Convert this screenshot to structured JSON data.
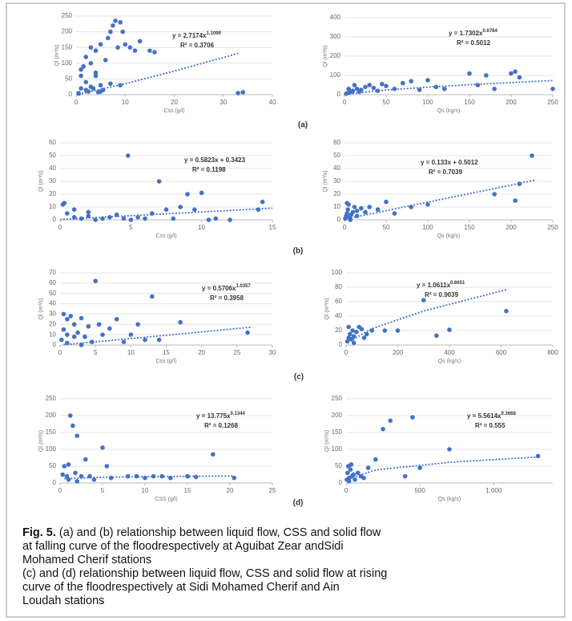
{
  "chart_data": [
    {
      "type": "scatter",
      "x_label": "Css (g/l)",
      "y_label": "Ql (m³/s)",
      "equation": "y = 2.7174x",
      "exponent": "1.1099",
      "r_squared": "R² = 0.3706",
      "color": "#4472c4",
      "grid": true,
      "xlim": [
        0,
        40
      ],
      "xticks": [
        0,
        10,
        20,
        30,
        40
      ],
      "ylim": [
        0,
        250
      ],
      "yticks": [
        0,
        50,
        100,
        150,
        200,
        250
      ],
      "x": [
        0.5,
        1,
        1,
        1.5,
        2,
        2,
        2.5,
        3,
        3,
        3.5,
        4,
        4,
        4.5,
        5,
        5,
        5.5,
        6,
        6.5,
        7,
        7.5,
        8,
        8.5,
        9,
        9.5,
        10,
        11,
        12,
        13,
        15,
        16,
        33,
        34,
        2,
        3,
        5,
        7,
        9,
        1,
        0.5,
        4
      ],
      "values": [
        5,
        20,
        60,
        90,
        40,
        120,
        10,
        100,
        150,
        20,
        140,
        60,
        8,
        30,
        160,
        15,
        110,
        180,
        200,
        220,
        235,
        150,
        230,
        200,
        160,
        150,
        140,
        170,
        140,
        135,
        5,
        8,
        15,
        25,
        10,
        35,
        30,
        80,
        3,
        70
      ],
      "trendline": {
        "x": [
          0.5,
          10,
          20,
          33
        ],
        "values": [
          1.3,
          35,
          75,
          131
        ]
      }
    },
    {
      "type": "scatter",
      "x_label": "Qs (kg/s)",
      "y_label": "Ql (m³/s)",
      "equation": "y = 1.7302x",
      "exponent": "0.6784",
      "r_squared": "R² = 0.5012",
      "color": "#4472c4",
      "grid": true,
      "xlim": [
        0,
        250
      ],
      "xticks": [
        0,
        50,
        100,
        150,
        200,
        250
      ],
      "ylim": [
        0,
        400
      ],
      "yticks": [
        0,
        100,
        200,
        300,
        400
      ],
      "x": [
        2,
        5,
        8,
        10,
        15,
        20,
        25,
        30,
        35,
        40,
        50,
        60,
        70,
        80,
        90,
        100,
        110,
        120,
        150,
        160,
        170,
        180,
        200,
        205,
        210,
        250,
        5,
        12,
        18,
        45
      ],
      "values": [
        5,
        10,
        15,
        20,
        30,
        25,
        40,
        50,
        35,
        20,
        45,
        30,
        60,
        70,
        25,
        75,
        40,
        30,
        110,
        50,
        100,
        30,
        110,
        120,
        90,
        30,
        30,
        50,
        15,
        55
      ],
      "trendline": {
        "x": [
          2,
          50,
          100,
          150,
          200,
          250
        ],
        "values": [
          2.8,
          24.5,
          39.3,
          51.8,
          63,
          73.2
        ]
      }
    },
    {
      "type": "scatter",
      "x_label": "Css (g/l)",
      "y_label": "Ql (m³/s)",
      "equation": "y = 0.5823x + 0.3423",
      "r_squared": "R² = 0.1198",
      "color": "#4472c4",
      "grid": true,
      "xlim": [
        0,
        15
      ],
      "xticks": [
        0,
        5,
        10,
        15
      ],
      "ylim": [
        0,
        60
      ],
      "yticks": [
        0,
        10,
        20,
        30,
        40,
        50,
        60
      ],
      "x": [
        0.2,
        0.5,
        1,
        1,
        1.5,
        2,
        2.5,
        3,
        3.5,
        4,
        4.5,
        4.8,
        5,
        5.5,
        6,
        6.5,
        7,
        7.5,
        8,
        8.5,
        9,
        9.5,
        10,
        10.5,
        11,
        14,
        14.3,
        12,
        0.3,
        2
      ],
      "values": [
        12,
        5,
        2,
        8,
        1,
        3,
        0,
        1,
        2,
        4,
        1,
        50,
        0,
        2,
        1,
        5,
        30,
        8,
        1,
        10,
        20,
        8,
        21,
        0,
        1,
        8,
        14,
        0,
        13,
        6
      ],
      "trendline": {
        "x": [
          0,
          15
        ],
        "values": [
          0.3423,
          9.08
        ]
      }
    },
    {
      "type": "scatter",
      "x_label": "Qs (kg/s)",
      "y_label": "Ql (m³/s)",
      "equation": "y = 0.133x + 0.5012",
      "r_squared": "R² = 0.7039",
      "color": "#4472c4",
      "grid": true,
      "xlim": [
        0,
        250
      ],
      "xticks": [
        0,
        50,
        100,
        150,
        200,
        250
      ],
      "ylim": [
        0,
        60
      ],
      "yticks": [
        0,
        10,
        20,
        30,
        40,
        50,
        60
      ],
      "x": [
        1,
        2,
        3,
        4,
        5,
        6,
        8,
        10,
        12,
        15,
        20,
        25,
        30,
        40,
        50,
        60,
        80,
        100,
        180,
        205,
        210,
        225,
        3,
        7,
        15
      ],
      "values": [
        1,
        3,
        5,
        8,
        12,
        2,
        4,
        6,
        10,
        3,
        9,
        6,
        10,
        8,
        14,
        5,
        10,
        12,
        20,
        15,
        28,
        50,
        13,
        0,
        7
      ],
      "trendline": {
        "x": [
          0,
          230
        ],
        "values": [
          0.5012,
          31.09
        ]
      }
    },
    {
      "type": "scatter",
      "x_label": "Css (g/l)",
      "y_label": "Ql (m³/s)",
      "equation": "y = 0.5706x",
      "exponent": "1.0357",
      "r_squared": "R² = 0.3958",
      "color": "#4472c4",
      "grid": true,
      "xlim": [
        0,
        30
      ],
      "xticks": [
        0,
        5,
        10,
        15,
        20,
        25,
        30
      ],
      "ylim": [
        0,
        70
      ],
      "yticks": [
        0,
        10,
        20,
        30,
        40,
        50,
        60,
        70
      ],
      "x": [
        0.2,
        0.5,
        1,
        1,
        1.5,
        2,
        2.5,
        3,
        3.5,
        4,
        4.5,
        5,
        5.5,
        6,
        7,
        8,
        9,
        10,
        11,
        12,
        13,
        14,
        17,
        26.5,
        1,
        2,
        3,
        0.5
      ],
      "values": [
        5,
        15,
        25,
        10,
        28,
        20,
        12,
        26,
        8,
        18,
        3,
        62,
        20,
        10,
        16,
        25,
        3,
        10,
        20,
        5,
        47,
        5,
        22,
        12,
        2,
        8,
        0,
        30
      ],
      "trendline": {
        "x": [
          0.5,
          10,
          20,
          27
        ],
        "values": [
          0.3,
          6.2,
          12.7,
          17.3
        ]
      }
    },
    {
      "type": "scatter",
      "x_label": "Qs (kg/s)",
      "y_label": "Ql (m³/s)",
      "equation": "y = 1.0611x",
      "exponent": "0.6651",
      "r_squared": "R² = 0.9039",
      "color": "#4472c4",
      "grid": true,
      "xlim": [
        0,
        800
      ],
      "xticks": [
        0,
        200,
        400,
        600,
        800
      ],
      "ylim": [
        0,
        100
      ],
      "yticks": [
        0,
        20,
        40,
        60,
        80,
        100
      ],
      "x": [
        5,
        10,
        15,
        20,
        25,
        30,
        40,
        50,
        60,
        80,
        100,
        150,
        200,
        300,
        350,
        400,
        620,
        10,
        30,
        70
      ],
      "values": [
        5,
        10,
        15,
        8,
        20,
        12,
        18,
        25,
        22,
        15,
        20,
        20,
        20,
        62,
        13,
        21,
        47,
        25,
        3,
        10
      ],
      "trendline": {
        "x": [
          5,
          100,
          300,
          620
        ],
        "values": [
          3.1,
          22.7,
          47.1,
          76.4
        ]
      }
    },
    {
      "type": "scatter",
      "x_label": "CSS (g/l)",
      "y_label": "Ql (m³/s)",
      "equation": "y = 13.775x",
      "exponent": "0.1344",
      "r_squared": "R² = 0.1268",
      "color": "#4472c4",
      "grid": true,
      "xlim": [
        0,
        25
      ],
      "xticks": [
        0,
        5,
        10,
        15,
        20,
        25
      ],
      "ylim": [
        0,
        250
      ],
      "yticks": [
        0,
        50,
        100,
        150,
        200,
        250
      ],
      "x": [
        0.5,
        0.8,
        1,
        1.2,
        1.5,
        1.8,
        2,
        2.5,
        3,
        3.5,
        4,
        5,
        5.5,
        6,
        8,
        9,
        10,
        11,
        12,
        13,
        15,
        16,
        18,
        20.5,
        1,
        2,
        0.3
      ],
      "values": [
        50,
        20,
        55,
        200,
        170,
        30,
        140,
        20,
        70,
        20,
        10,
        105,
        50,
        15,
        20,
        20,
        15,
        20,
        20,
        15,
        20,
        18,
        85,
        15,
        10,
        5,
        25
      ],
      "trendline": {
        "x": [
          0.5,
          5,
          10,
          20.5
        ],
        "values": [
          12.6,
          17.1,
          18.8,
          20.7
        ]
      }
    },
    {
      "type": "scatter",
      "x_label": "Qs (kg/s)",
      "y_label": "Ql (m³/s)",
      "equation": "y = 5.5614x",
      "exponent": "0.3668",
      "r_squared": "R² = 0.555",
      "color": "#4472c4",
      "grid": true,
      "xlim": [
        0,
        1400
      ],
      "xticks": [
        0,
        500,
        {
          "value": 1000,
          "label": "1,000"
        }
      ],
      "ylim": [
        0,
        250
      ],
      "yticks": [
        0,
        50,
        100,
        150,
        200,
        250
      ],
      "x": [
        5,
        10,
        15,
        20,
        30,
        40,
        50,
        60,
        80,
        100,
        150,
        200,
        250,
        300,
        400,
        450,
        500,
        700,
        1300,
        20,
        35,
        120
      ],
      "values": [
        10,
        30,
        50,
        15,
        40,
        20,
        25,
        10,
        30,
        20,
        45,
        70,
        160,
        185,
        20,
        195,
        45,
        100,
        80,
        5,
        55,
        15
      ],
      "trendline": {
        "x": [
          5,
          200,
          700,
          1300
        ],
        "values": [
          10,
          38.8,
          61.5,
          77.1
        ]
      }
    }
  ],
  "panel_labels": [
    "(a)",
    "(b)",
    "(c)",
    "(d)"
  ],
  "caption": {
    "label": "Fig. 5.",
    "lines": [
      " (a) and (b) relationship between liquid flow, CSS and solid flow",
      "at falling curve of the floodrespectively at Aguibat Zear andSidi",
      "Mohamed Cherif stations",
      "(c) and (d) relationship between liquid flow, CSS and solid flow at rising",
      "curve  of the floodrespectively at Sidi Mohamed Cherif  and Ain",
      "Loudah stations"
    ]
  }
}
